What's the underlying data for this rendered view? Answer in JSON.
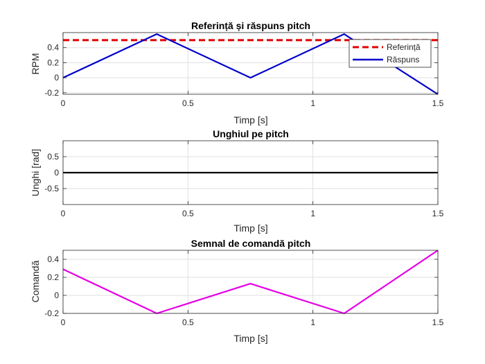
{
  "chart_data": [
    {
      "type": "line",
      "title": "Referință și răspuns pitch",
      "xlabel": "Timp [s]",
      "ylabel": "RPM",
      "xlim": [
        0,
        1.5
      ],
      "ylim": [
        -0.22,
        0.6
      ],
      "xticks": [
        0,
        0.5,
        1,
        1.5
      ],
      "xtick_labels": [
        "0",
        "0.5",
        "1",
        "1.5"
      ],
      "yticks": [
        -0.2,
        0,
        0.2,
        0.4
      ],
      "ytick_labels": [
        "-0.2",
        "0",
        "0.2",
        "0.4"
      ],
      "grid": true,
      "legend": "top-right",
      "series": [
        {
          "name": "Referință",
          "color": "#e00000",
          "style": "dashed",
          "x": [
            0,
            1.5
          ],
          "y": [
            0.5,
            0.5
          ]
        },
        {
          "name": "Răspuns",
          "color": "#0000cc",
          "style": "solid",
          "x": [
            0,
            0.375,
            0.75,
            1.125,
            1.5
          ],
          "y": [
            0,
            0.58,
            0,
            0.58,
            -0.22
          ]
        }
      ]
    },
    {
      "type": "line",
      "title": "Unghiul pe pitch",
      "xlabel": "Timp [s]",
      "ylabel": "Unghi [rad]",
      "xlim": [
        0,
        1.5
      ],
      "ylim": [
        -1,
        1
      ],
      "xticks": [
        0,
        0.5,
        1,
        1.5
      ],
      "xtick_labels": [
        "0",
        "0.5",
        "1",
        "1.5"
      ],
      "yticks": [
        -0.5,
        0,
        0.5
      ],
      "ytick_labels": [
        "-0.5",
        "0",
        "0.5"
      ],
      "grid": true,
      "series": [
        {
          "color": "#000000",
          "style": "solid",
          "x": [
            0,
            1.5
          ],
          "y": [
            0,
            0
          ]
        }
      ]
    },
    {
      "type": "line",
      "title": "Semnal de comandă pitch",
      "xlabel": "Timp [s]",
      "ylabel": "Comandă",
      "xlim": [
        0,
        1.5
      ],
      "ylim": [
        -0.2,
        0.5
      ],
      "xticks": [
        0,
        0.5,
        1,
        1.5
      ],
      "xtick_labels": [
        "0",
        "0.5",
        "1",
        "1.5"
      ],
      "yticks": [
        -0.2,
        0,
        0.2,
        0.4
      ],
      "ytick_labels": [
        "-0.2",
        "0",
        "0.2",
        "0.4"
      ],
      "grid": true,
      "series": [
        {
          "color": "#e600e6",
          "style": "solid",
          "x": [
            0,
            0.375,
            0.75,
            1.125,
            1.5
          ],
          "y": [
            0.29,
            -0.2,
            0.13,
            -0.2,
            0.5
          ]
        }
      ]
    }
  ]
}
